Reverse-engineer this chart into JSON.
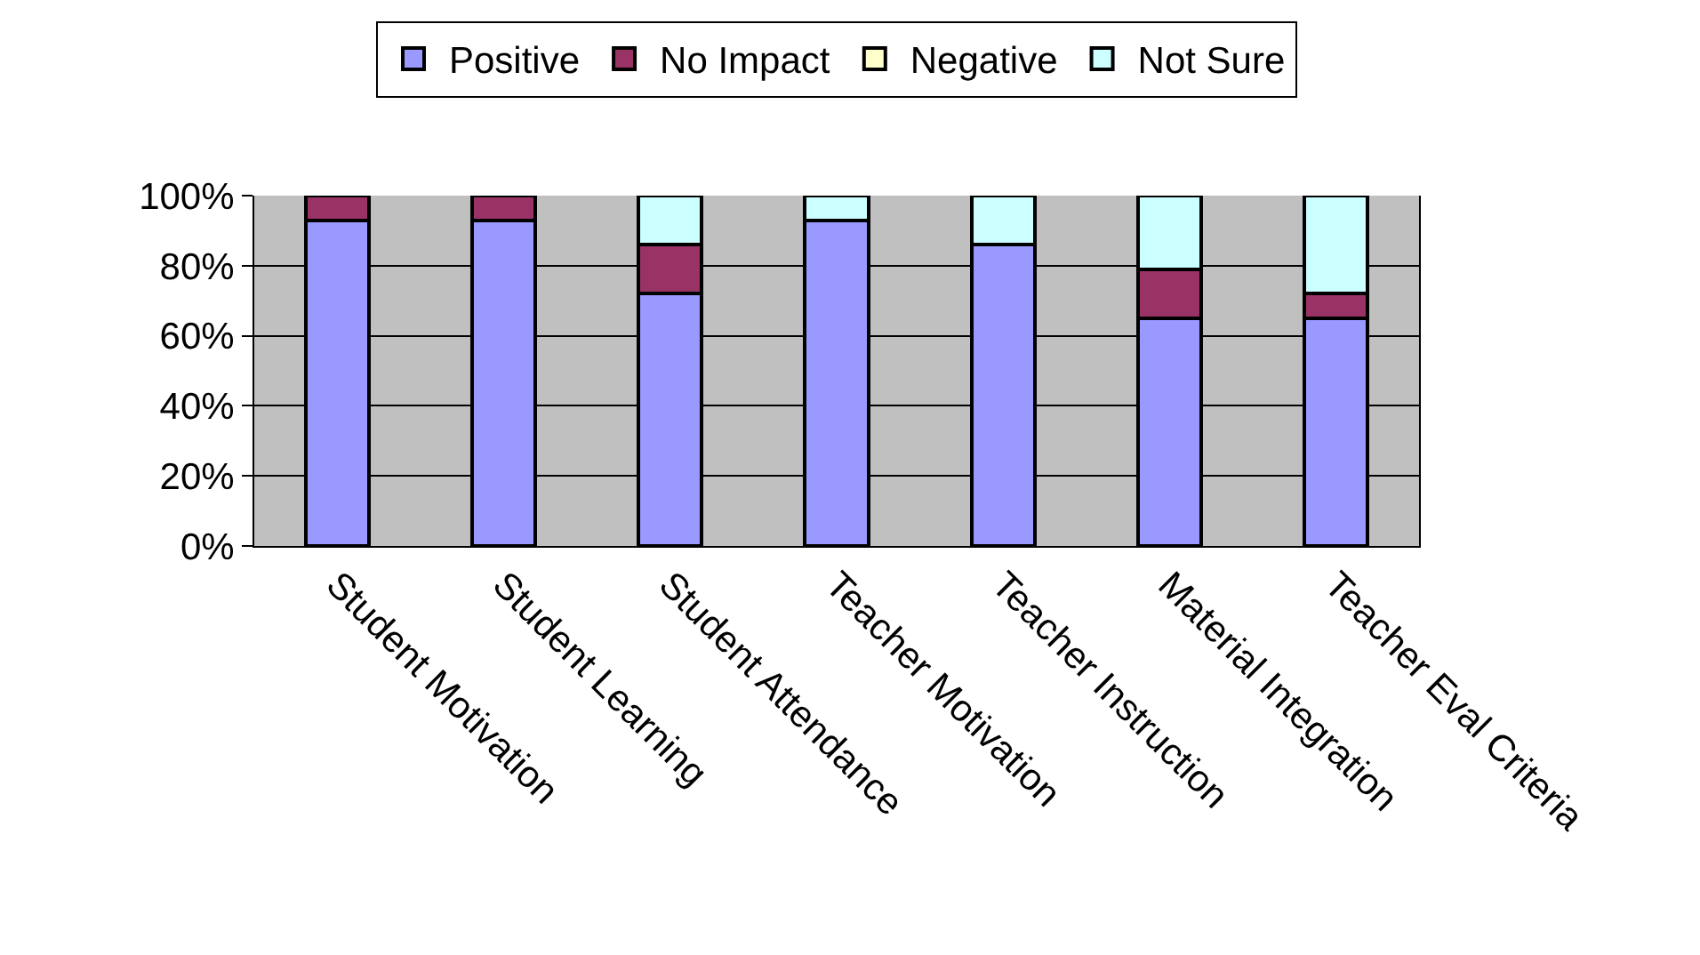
{
  "chart_data": {
    "type": "bar",
    "stacked": true,
    "categories": [
      "Student Motivation",
      "Student Learning",
      "Student Attendance",
      "Teacher Motivation",
      "Teacher Instruction",
      "Material Integration",
      "Teacher Eval Criteria"
    ],
    "series": [
      {
        "name": "Positive",
        "color": "#9999ff",
        "values": [
          93,
          93,
          72,
          93,
          86,
          65,
          65
        ]
      },
      {
        "name": "No Impact",
        "color": "#993366",
        "values": [
          7,
          7,
          14,
          null,
          null,
          14,
          7
        ]
      },
      {
        "name": "Negative",
        "color": "#ffffcc",
        "values": [
          null,
          null,
          null,
          null,
          null,
          null,
          null
        ]
      },
      {
        "name": "Not Sure",
        "color": "#ccffff",
        "values": [
          null,
          null,
          14,
          7,
          14,
          21,
          28
        ]
      }
    ],
    "ylim": [
      0,
      100
    ],
    "yticks": [
      {
        "value": 0,
        "label": "0%"
      },
      {
        "value": 20,
        "label": "20%"
      },
      {
        "value": 40,
        "label": "40%"
      },
      {
        "value": 60,
        "label": "60%"
      },
      {
        "value": 80,
        "label": "80%"
      },
      {
        "value": 100,
        "label": "100%"
      }
    ],
    "grid": "y",
    "legend": "top"
  }
}
